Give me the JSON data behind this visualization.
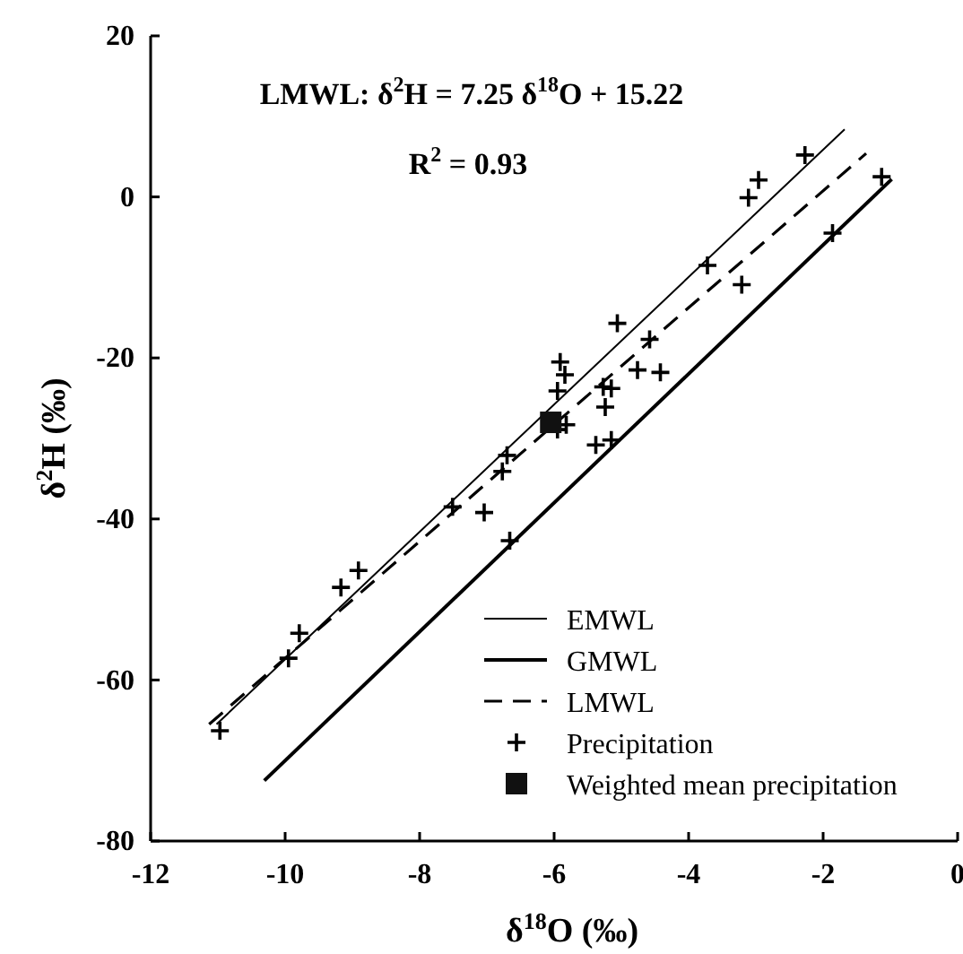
{
  "chart_data": {
    "type": "scatter",
    "xlabel": "δ$^{18}$O (‰)",
    "ylabel": "δ$^{2}$H (‰)",
    "xlim": [
      -12,
      0
    ],
    "xticks": [
      -12,
      -10,
      -8,
      -6,
      -4,
      -2,
      0
    ],
    "ylim": [
      -80,
      20
    ],
    "yticks": [
      -80,
      -60,
      -40,
      -20,
      0,
      20
    ],
    "grid": false,
    "legend": "bottom right",
    "annotations": [
      "LMWL: δ$^{2}$H = 7.25 δ$^{18}$O + 15.22",
      "R$^{2}$ = 0.93"
    ],
    "series": [
      {
        "name": "EMWL",
        "type": "line",
        "line_style": "solid",
        "color": "#000000",
        "x": [
          -11.02,
          -1.68
        ],
        "values": [
          -65.5,
          8.4
        ]
      },
      {
        "name": "GMWL",
        "type": "line",
        "line_style": "solid",
        "color": "#000000",
        "x": [
          -10.31,
          -0.98
        ],
        "values": [
          -72.5,
          2.2
        ]
      },
      {
        "name": "LMWL",
        "type": "line",
        "line_style": "dashed",
        "color": "#000000",
        "x": [
          -11.13,
          -1.36
        ],
        "values": [
          -65.5,
          5.4
        ]
      },
      {
        "name": "Precipitation",
        "marker": "cross",
        "color": "#000000",
        "x": [
          -2.27,
          -2.96,
          -3.11,
          -1.13,
          -1.86,
          -3.72,
          -3.21,
          -5.06,
          -4.58,
          -5.91,
          -5.84,
          -4.76,
          -4.42,
          -5.95,
          -5.27,
          -5.15,
          -5.24,
          -5.82,
          -5.95,
          -5.38,
          -5.15,
          -6.7,
          -6.77,
          -7.51,
          -7.04,
          -6.66,
          -8.91,
          -9.17,
          -9.79,
          -9.95,
          -10.97
        ],
        "values": [
          5.2,
          2.1,
          -0.1,
          2.5,
          -4.5,
          -8.5,
          -10.9,
          -15.7,
          -17.7,
          -20.5,
          -22.1,
          -21.5,
          -21.8,
          -24.1,
          -23.6,
          -23.8,
          -26.1,
          -28.3,
          -28.9,
          -30.8,
          -30.2,
          -32.1,
          -34.1,
          -38.5,
          -39.2,
          -42.7,
          -46.4,
          -48.5,
          -54.2,
          -57.3,
          -66.3
        ]
      },
      {
        "name": "Weighted mean precipitation",
        "marker": "square",
        "color": "#111111",
        "x": [
          -6.05
        ],
        "values": [
          -28.0
        ]
      }
    ]
  }
}
